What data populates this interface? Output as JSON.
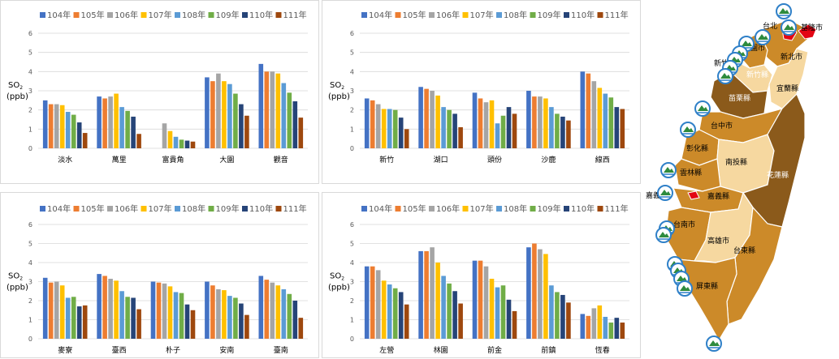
{
  "common": {
    "legend": [
      "104年",
      "105年",
      "106年",
      "107年",
      "108年",
      "109年",
      "110年",
      "111年"
    ],
    "series_colors": [
      "#4472C4",
      "#ED7D31",
      "#A5A5A5",
      "#FFC000",
      "#5B9BD5",
      "#70AD47",
      "#264478",
      "#9E480E"
    ],
    "ylabel_main": "SO",
    "ylabel_sub": "2",
    "ylabel_unit": "(ppb)"
  },
  "chart_data": [
    {
      "type": "bar",
      "title": "",
      "xlabel": "",
      "ylabel": "SO2 (ppb)",
      "ylim": [
        0,
        6
      ],
      "yticks": [
        "0",
        "1",
        "2",
        "3",
        "4",
        "5",
        "6"
      ],
      "categories": [
        "淡水",
        "萬里",
        "富貴角",
        "大園",
        "觀音"
      ],
      "series": [
        {
          "name": "104年",
          "values": [
            2.5,
            2.7,
            null,
            3.7,
            4.4
          ]
        },
        {
          "name": "105年",
          "values": [
            2.3,
            2.6,
            null,
            3.5,
            4.0
          ]
        },
        {
          "name": "106年",
          "values": [
            2.3,
            2.7,
            1.3,
            3.9,
            4.0
          ]
        },
        {
          "name": "107年",
          "values": [
            2.25,
            2.85,
            0.9,
            3.5,
            3.9
          ]
        },
        {
          "name": "108年",
          "values": [
            1.9,
            2.15,
            0.6,
            3.35,
            3.4
          ]
        },
        {
          "name": "109年",
          "values": [
            1.75,
            1.95,
            0.45,
            2.85,
            2.9
          ]
        },
        {
          "name": "110年",
          "values": [
            1.35,
            1.65,
            0.4,
            2.3,
            2.45
          ]
        },
        {
          "name": "111年",
          "values": [
            0.8,
            0.75,
            0.35,
            1.7,
            1.6
          ]
        }
      ]
    },
    {
      "type": "bar",
      "title": "",
      "xlabel": "",
      "ylabel": "SO2 (ppb)",
      "ylim": [
        0,
        6
      ],
      "yticks": [
        "0",
        "1",
        "2",
        "3",
        "4",
        "5",
        "6"
      ],
      "categories": [
        "新竹",
        "湖口",
        "頭份",
        "沙鹿",
        "線西"
      ],
      "series": [
        {
          "name": "104年",
          "values": [
            2.6,
            3.2,
            2.9,
            3.0,
            4.0
          ]
        },
        {
          "name": "105年",
          "values": [
            2.5,
            3.1,
            2.6,
            2.7,
            3.9
          ]
        },
        {
          "name": "106年",
          "values": [
            2.3,
            3.0,
            2.4,
            2.7,
            3.5
          ]
        },
        {
          "name": "107年",
          "values": [
            2.05,
            2.75,
            2.5,
            2.6,
            3.15
          ]
        },
        {
          "name": "108年",
          "values": [
            2.05,
            2.15,
            1.3,
            2.15,
            2.85
          ]
        },
        {
          "name": "109年",
          "values": [
            2.0,
            2.0,
            1.7,
            1.8,
            2.65
          ]
        },
        {
          "name": "110年",
          "values": [
            1.6,
            1.8,
            2.15,
            1.65,
            2.15
          ]
        },
        {
          "name": "111年",
          "values": [
            1.0,
            1.1,
            1.8,
            1.45,
            2.05
          ]
        }
      ]
    },
    {
      "type": "bar",
      "title": "",
      "xlabel": "",
      "ylabel": "SO2 (ppb)",
      "ylim": [
        0,
        6
      ],
      "yticks": [
        "0",
        "1",
        "2",
        "3",
        "4",
        "5",
        "6"
      ],
      "categories": [
        "麥寮",
        "臺西",
        "朴子",
        "安南",
        "臺南"
      ],
      "series": [
        {
          "name": "104年",
          "values": [
            3.2,
            3.4,
            3.0,
            3.0,
            3.3
          ]
        },
        {
          "name": "105年",
          "values": [
            2.95,
            3.3,
            2.95,
            2.8,
            3.1
          ]
        },
        {
          "name": "106年",
          "values": [
            3.0,
            3.15,
            2.9,
            2.6,
            2.95
          ]
        },
        {
          "name": "107年",
          "values": [
            2.8,
            3.05,
            2.75,
            2.55,
            2.8
          ]
        },
        {
          "name": "108年",
          "values": [
            2.15,
            2.5,
            2.45,
            2.25,
            2.6
          ]
        },
        {
          "name": "109年",
          "values": [
            2.2,
            2.2,
            2.4,
            2.15,
            2.35
          ]
        },
        {
          "name": "110年",
          "values": [
            1.7,
            2.15,
            1.8,
            1.85,
            2.0
          ]
        },
        {
          "name": "111年",
          "values": [
            1.75,
            1.55,
            1.5,
            1.25,
            1.1
          ]
        }
      ]
    },
    {
      "type": "bar",
      "title": "",
      "xlabel": "",
      "ylabel": "SO2 (ppb)",
      "ylim": [
        0,
        6
      ],
      "yticks": [
        "0",
        "1",
        "2",
        "3",
        "4",
        "5",
        "6"
      ],
      "categories": [
        "左營",
        "林園",
        "前金",
        "前鎮",
        "恆春"
      ],
      "series": [
        {
          "name": "104年",
          "values": [
            3.8,
            4.6,
            4.1,
            4.8,
            1.3
          ]
        },
        {
          "name": "105年",
          "values": [
            3.8,
            4.6,
            4.1,
            5.0,
            1.2
          ]
        },
        {
          "name": "106年",
          "values": [
            3.6,
            4.8,
            3.8,
            4.7,
            1.6
          ]
        },
        {
          "name": "107年",
          "values": [
            3.05,
            4.0,
            3.15,
            4.45,
            1.75
          ]
        },
        {
          "name": "108年",
          "values": [
            2.85,
            3.3,
            2.7,
            2.8,
            1.15
          ]
        },
        {
          "name": "109年",
          "values": [
            2.65,
            2.9,
            2.8,
            2.45,
            0.85
          ]
        },
        {
          "name": "110年",
          "values": [
            2.45,
            2.5,
            2.05,
            2.3,
            1.1
          ]
        },
        {
          "name": "111年",
          "values": [
            1.8,
            1.85,
            1.45,
            1.9,
            0.85
          ]
        }
      ]
    }
  ],
  "map": {
    "colors": {
      "dark": "#8B5A1B",
      "mid": "#CC8A29",
      "light": "#F6D8A0",
      "highlight": "#E30613",
      "station_blue": "#2F80C8",
      "station_green": "#2E8B3E"
    },
    "regions": {
      "keelung": "基隆市",
      "taipei": "台北",
      "new_taipei": "新北市",
      "taoyuan": "桃園市",
      "hsinchu_city": "新竹",
      "hsinchu_county": "新竹縣",
      "yilan": "宜蘭縣",
      "miaoli": "苗栗縣",
      "taichung": "台中市",
      "changhua": "彰化縣",
      "nantou": "南投縣",
      "hualien": "花蓮縣",
      "yunlin": "雲林縣",
      "chiayi_city": "嘉義市",
      "chiayi_county": "嘉義縣",
      "tainan": "台南市",
      "kaohsiung": "高雄市",
      "taitung": "台東縣",
      "pingtung": "屏東縣"
    }
  }
}
